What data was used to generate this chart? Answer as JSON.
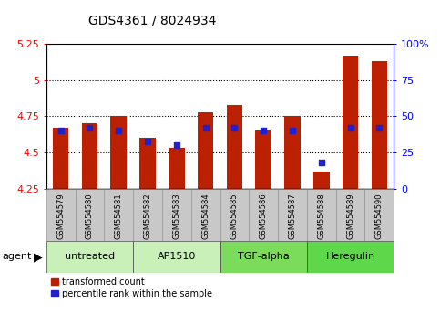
{
  "title": "GDS4361 / 8024934",
  "samples": [
    "GSM554579",
    "GSM554580",
    "GSM554581",
    "GSM554582",
    "GSM554583",
    "GSM554584",
    "GSM554585",
    "GSM554586",
    "GSM554587",
    "GSM554588",
    "GSM554589",
    "GSM554590"
  ],
  "bar_values": [
    4.67,
    4.7,
    4.75,
    4.6,
    4.53,
    4.78,
    4.83,
    4.65,
    4.75,
    4.37,
    5.17,
    5.13
  ],
  "percentile_values": [
    40,
    42,
    40,
    33,
    30,
    42,
    42,
    40,
    40,
    18,
    42,
    42
  ],
  "ymin": 4.25,
  "ymax": 5.25,
  "y_ticks": [
    4.25,
    4.5,
    4.75,
    5.0,
    5.25
  ],
  "y_tick_labels": [
    "4.25",
    "4.5",
    "4.75",
    "5",
    "5.25"
  ],
  "y2min": 0,
  "y2max": 100,
  "y2_ticks": [
    0,
    25,
    50,
    75,
    100
  ],
  "y2_tick_labels": [
    "0",
    "25",
    "50",
    "75",
    "100%"
  ],
  "groups": [
    {
      "label": "untreated",
      "start": 0,
      "end": 2,
      "color": "#c8f0b8"
    },
    {
      "label": "AP1510",
      "start": 3,
      "end": 5,
      "color": "#c8f0b8"
    },
    {
      "label": "TGF-alpha",
      "start": 6,
      "end": 8,
      "color": "#7adc5a"
    },
    {
      "label": "Heregulin",
      "start": 9,
      "end": 11,
      "color": "#5ed84a"
    }
  ],
  "agent_label": "agent",
  "bar_color": "#bb2000",
  "dot_color": "#2020cc",
  "bar_bottom": 4.25,
  "legend_items": [
    {
      "color": "#bb2000",
      "label": "transformed count"
    },
    {
      "color": "#2020cc",
      "label": "percentile rank within the sample"
    }
  ],
  "tick_area_color": "#c8c8c8",
  "figsize": [
    4.83,
    3.54
  ],
  "dpi": 100
}
